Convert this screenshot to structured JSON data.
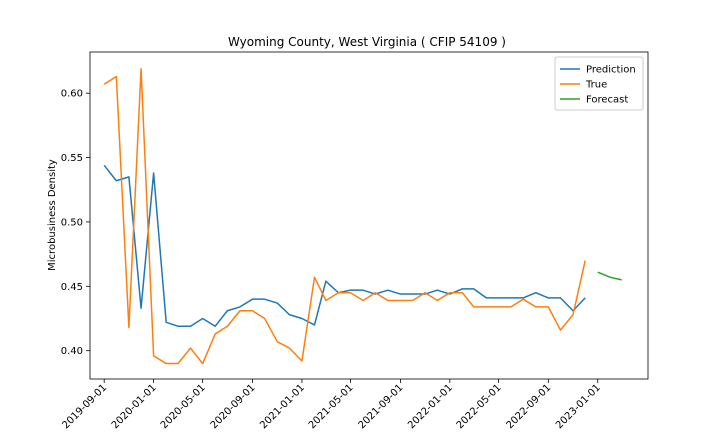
{
  "chart_data": {
    "type": "line",
    "title": "Wyoming County, West Virginia ( CFIP 54109 )",
    "xlabel": "",
    "ylabel": "Microbusiness Density",
    "ylim": [
      0.378,
      0.632
    ],
    "xlim": [
      "2019-07-28",
      "2023-05-05"
    ],
    "yticks": [
      0.4,
      0.45,
      0.5,
      0.55,
      0.6
    ],
    "ytick_labels": [
      "0.40",
      "0.45",
      "0.50",
      "0.55",
      "0.60"
    ],
    "xticks": [
      "2019-09-01",
      "2020-01-01",
      "2020-05-01",
      "2020-09-01",
      "2021-01-01",
      "2021-05-01",
      "2021-09-01",
      "2022-01-01",
      "2022-05-01",
      "2022-09-01",
      "2023-01-01"
    ],
    "legend_position": "top-right",
    "grid": false,
    "series": [
      {
        "name": "Prediction",
        "color": "#1f77b4",
        "x": [
          "2019-09-01",
          "2019-10-01",
          "2019-11-01",
          "2019-12-01",
          "2020-01-01",
          "2020-02-01",
          "2020-03-01",
          "2020-04-01",
          "2020-05-01",
          "2020-06-01",
          "2020-07-01",
          "2020-08-01",
          "2020-09-01",
          "2020-10-01",
          "2020-11-01",
          "2020-12-01",
          "2021-01-01",
          "2021-02-01",
          "2021-03-01",
          "2021-04-01",
          "2021-05-01",
          "2021-06-01",
          "2021-07-01",
          "2021-08-01",
          "2021-09-01",
          "2021-10-01",
          "2021-11-01",
          "2021-12-01",
          "2022-01-01",
          "2022-02-01",
          "2022-03-01",
          "2022-04-01",
          "2022-05-01",
          "2022-06-01",
          "2022-07-01",
          "2022-08-01",
          "2022-09-01",
          "2022-10-01",
          "2022-11-01",
          "2022-12-01"
        ],
        "values": [
          0.544,
          0.532,
          0.535,
          0.433,
          0.538,
          0.422,
          0.419,
          0.419,
          0.425,
          0.419,
          0.431,
          0.434,
          0.44,
          0.44,
          0.437,
          0.428,
          0.425,
          0.42,
          0.454,
          0.445,
          0.447,
          0.447,
          0.444,
          0.447,
          0.444,
          0.444,
          0.444,
          0.447,
          0.444,
          0.448,
          0.448,
          0.441,
          0.441,
          0.441,
          0.441,
          0.445,
          0.441,
          0.441,
          0.431,
          0.441
        ]
      },
      {
        "name": "True",
        "color": "#ff7f0e",
        "x": [
          "2019-09-01",
          "2019-10-01",
          "2019-11-01",
          "2019-12-01",
          "2020-01-01",
          "2020-02-01",
          "2020-03-01",
          "2020-04-01",
          "2020-05-01",
          "2020-06-01",
          "2020-07-01",
          "2020-08-01",
          "2020-09-01",
          "2020-10-01",
          "2020-11-01",
          "2020-12-01",
          "2021-01-01",
          "2021-02-01",
          "2021-03-01",
          "2021-04-01",
          "2021-05-01",
          "2021-06-01",
          "2021-07-01",
          "2021-08-01",
          "2021-09-01",
          "2021-10-01",
          "2021-11-01",
          "2021-12-01",
          "2022-01-01",
          "2022-02-01",
          "2022-03-01",
          "2022-04-01",
          "2022-05-01",
          "2022-06-01",
          "2022-07-01",
          "2022-08-01",
          "2022-09-01",
          "2022-10-01",
          "2022-11-01",
          "2022-12-01"
        ],
        "values": [
          0.607,
          0.613,
          0.418,
          0.619,
          0.396,
          0.39,
          0.39,
          0.402,
          0.39,
          0.413,
          0.419,
          0.431,
          0.431,
          0.425,
          0.407,
          0.402,
          0.392,
          0.457,
          0.439,
          0.445,
          0.445,
          0.439,
          0.445,
          0.439,
          0.439,
          0.439,
          0.445,
          0.439,
          0.445,
          0.445,
          0.434,
          0.434,
          0.434,
          0.434,
          0.44,
          0.434,
          0.434,
          0.416,
          0.428,
          0.47
        ]
      },
      {
        "name": "Forecast",
        "color": "#2ca02c",
        "x": [
          "2023-01-01",
          "2023-02-01",
          "2023-03-01"
        ],
        "values": [
          0.461,
          0.457,
          0.455
        ]
      }
    ]
  }
}
